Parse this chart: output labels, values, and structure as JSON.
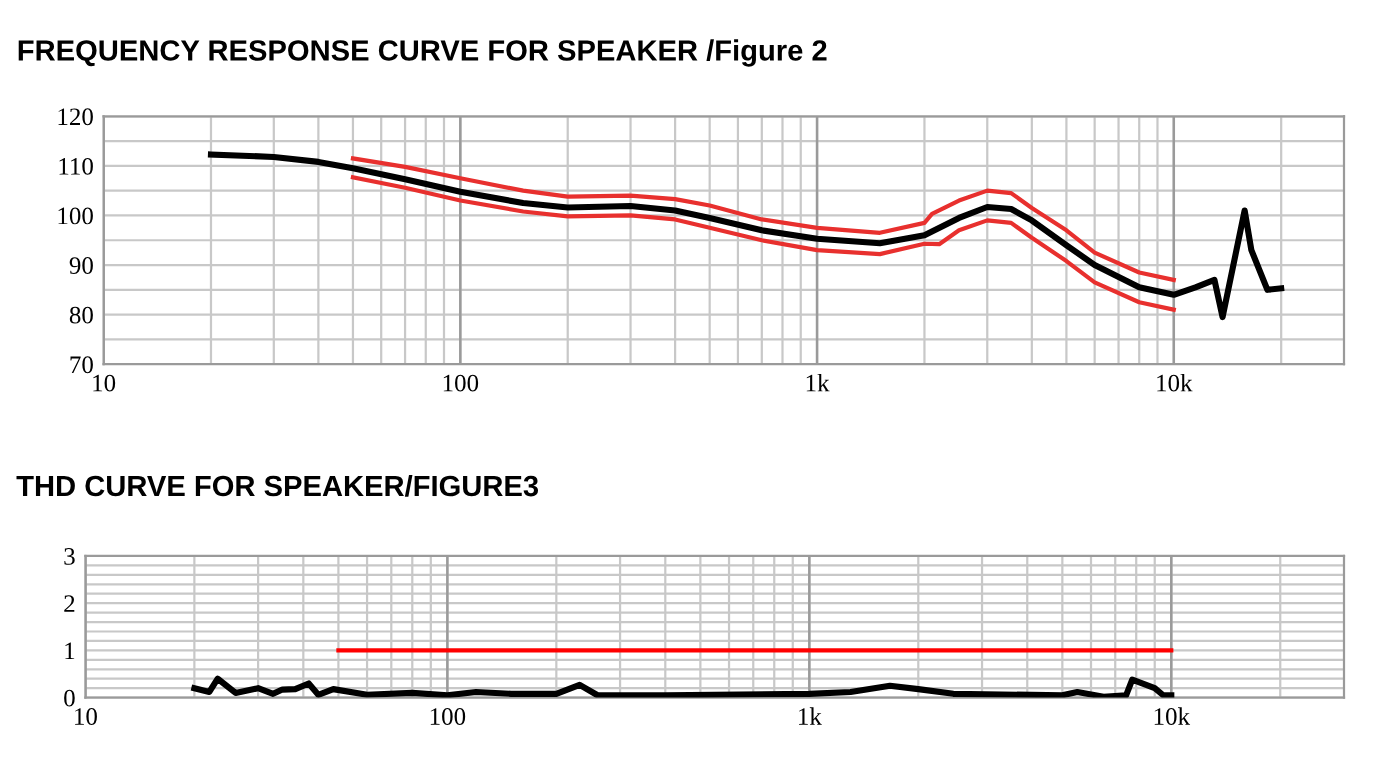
{
  "chart_data": [
    {
      "type": "line",
      "title": "FREQUENCY RESPONSE CURVE FOR SPEAKER /Figure 2",
      "log": "x",
      "grid": true,
      "marker": "none",
      "line_style": "solid",
      "xlim": [
        10,
        30000
      ],
      "ylim": [
        70,
        120
      ],
      "xticks": [
        10,
        {
          "value": 20,
          "label": null
        },
        {
          "value": 30,
          "label": null
        },
        {
          "value": 40,
          "label": null
        },
        {
          "value": 50,
          "label": null
        },
        {
          "value": 60,
          "label": null
        },
        {
          "value": 70,
          "label": null
        },
        {
          "value": 80,
          "label": null
        },
        {
          "value": 90,
          "label": null
        },
        100,
        {
          "value": 200,
          "label": null
        },
        {
          "value": 300,
          "label": null
        },
        {
          "value": 400,
          "label": null
        },
        {
          "value": 500,
          "label": null
        },
        {
          "value": 600,
          "label": null
        },
        {
          "value": 700,
          "label": null
        },
        {
          "value": 800,
          "label": null
        },
        {
          "value": 900,
          "label": null
        },
        {
          "value": 1000,
          "label": "1k"
        },
        {
          "value": 2000,
          "label": null
        },
        {
          "value": 3000,
          "label": null
        },
        {
          "value": 4000,
          "label": null
        },
        {
          "value": 5000,
          "label": null
        },
        {
          "value": 6000,
          "label": null
        },
        {
          "value": 7000,
          "label": null
        },
        {
          "value": 8000,
          "label": null
        },
        {
          "value": 9000,
          "label": null
        },
        {
          "value": 10000,
          "label": "10k"
        },
        {
          "value": 20000,
          "label": null
        }
      ],
      "yticks": [
        70,
        {
          "value": 75,
          "label": null
        },
        80,
        {
          "value": 85,
          "label": null
        },
        90,
        {
          "value": 95,
          "label": null
        },
        100,
        {
          "value": 105,
          "label": null
        },
        110,
        {
          "value": 115,
          "label": null
        },
        120
      ],
      "series": [
        {
          "color": "#000000",
          "x": [
            20,
            30,
            40,
            50,
            70,
            100,
            150,
            200,
            300,
            400,
            500,
            700,
            1000,
            1500,
            2000,
            2500,
            3000,
            3500,
            4000,
            5000,
            6000,
            8000,
            10000,
            11500,
            13000,
            13700,
            15800,
            16500,
            18300,
            20000
          ],
          "values": [
            112.3,
            111.8,
            110.8,
            109.5,
            107.3,
            104.8,
            102.5,
            101.6,
            101.9,
            101,
            99.5,
            97,
            95.3,
            94.4,
            96,
            99.5,
            101.7,
            101.3,
            99,
            94,
            90,
            85.5,
            84,
            85.5,
            87,
            79.5,
            101,
            93,
            85,
            85.3
          ]
        },
        {
          "color": "#e8302e",
          "x": [
            50,
            70,
            100,
            150,
            200,
            300,
            400,
            500,
            700,
            1000,
            1500,
            2000,
            2100,
            2500,
            3000,
            3500,
            4000,
            5000,
            6000,
            8000,
            10000
          ],
          "values": [
            111.5,
            109.8,
            107.5,
            105,
            103.8,
            104,
            103.3,
            102,
            99.2,
            97.5,
            96.5,
            98.5,
            100.3,
            103,
            105,
            104.5,
            101.5,
            97,
            92.5,
            88.5,
            87
          ]
        },
        {
          "color": "#e8302e",
          "x": [
            50,
            70,
            100,
            150,
            200,
            300,
            400,
            500,
            700,
            1000,
            1500,
            2000,
            2200,
            2500,
            3000,
            3500,
            4000,
            5000,
            6000,
            8000,
            10000
          ],
          "values": [
            107.7,
            105.6,
            103,
            100.8,
            99.8,
            100,
            99.2,
            97.5,
            95,
            93,
            92.2,
            94.3,
            94.2,
            97,
            99,
            98.5,
            95.5,
            90.8,
            86.5,
            82.5,
            81
          ]
        }
      ]
    },
    {
      "type": "line",
      "title": "THD CURVE FOR SPEAKER/FIGURE3",
      "log": "x",
      "grid": true,
      "marker": "none",
      "line_style": "solid",
      "xlim": [
        10,
        30000
      ],
      "ylim": [
        0,
        3
      ],
      "xticks": [
        10,
        {
          "value": 20,
          "label": null
        },
        {
          "value": 30,
          "label": null
        },
        {
          "value": 40,
          "label": null
        },
        {
          "value": 50,
          "label": null
        },
        {
          "value": 60,
          "label": null
        },
        {
          "value": 70,
          "label": null
        },
        {
          "value": 80,
          "label": null
        },
        {
          "value": 90,
          "label": null
        },
        100,
        {
          "value": 200,
          "label": null
        },
        {
          "value": 300,
          "label": null
        },
        {
          "value": 400,
          "label": null
        },
        {
          "value": 500,
          "label": null
        },
        {
          "value": 600,
          "label": null
        },
        {
          "value": 700,
          "label": null
        },
        {
          "value": 800,
          "label": null
        },
        {
          "value": 900,
          "label": null
        },
        {
          "value": 1000,
          "label": "1k"
        },
        {
          "value": 2000,
          "label": null
        },
        {
          "value": 3000,
          "label": null
        },
        {
          "value": 4000,
          "label": null
        },
        {
          "value": 5000,
          "label": null
        },
        {
          "value": 6000,
          "label": null
        },
        {
          "value": 7000,
          "label": null
        },
        {
          "value": 8000,
          "label": null
        },
        {
          "value": 9000,
          "label": null
        },
        {
          "value": 10000,
          "label": "10k"
        },
        {
          "value": 20000,
          "label": null
        }
      ],
      "yticks": [
        0,
        {
          "value": 0.2,
          "label": null
        },
        {
          "value": 0.4,
          "label": null
        },
        {
          "value": 0.6,
          "label": null
        },
        {
          "value": 0.8,
          "label": null
        },
        1,
        {
          "value": 1.2,
          "label": null
        },
        {
          "value": 1.4,
          "label": null
        },
        {
          "value": 1.6,
          "label": null
        },
        {
          "value": 1.8,
          "label": null
        },
        2,
        {
          "value": 2.2,
          "label": null
        },
        {
          "value": 2.4,
          "label": null
        },
        {
          "value": 2.6,
          "label": null
        },
        {
          "value": 2.8,
          "label": null
        },
        3
      ],
      "series": [
        {
          "color": "#000000",
          "x": [
            20,
            22,
            23.2,
            26,
            30,
            33,
            35,
            38,
            41.4,
            44,
            48.4,
            60,
            80,
            100,
            120,
            150,
            200,
            232,
            260,
            400,
            1000,
            1300,
            1670,
            2000,
            2500,
            5000,
            5500,
            6500,
            7500,
            7800,
            9000,
            9500,
            10000
          ],
          "values": [
            0.2,
            0.12,
            0.4,
            0.1,
            0.2,
            0.08,
            0.17,
            0.18,
            0.3,
            0.06,
            0.18,
            0.06,
            0.1,
            0.05,
            0.12,
            0.08,
            0.08,
            0.27,
            0.05,
            0.05,
            0.08,
            0.12,
            0.25,
            0.18,
            0.08,
            0.05,
            0.12,
            0.02,
            0.05,
            0.38,
            0.2,
            0.05,
            0.05
          ]
        },
        {
          "color": "#ff0000",
          "x": [
            50,
            10000
          ],
          "values": [
            1,
            1
          ]
        }
      ]
    }
  ]
}
